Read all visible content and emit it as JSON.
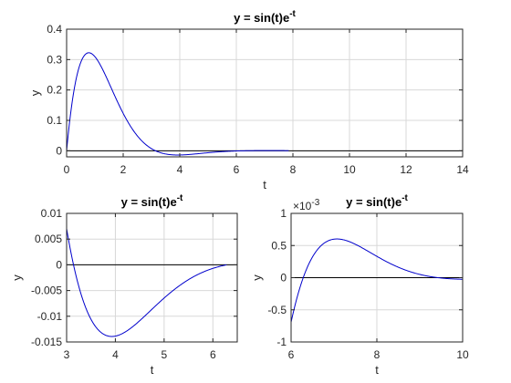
{
  "chart_data": [
    {
      "type": "line",
      "title_base": "y = sin(t)e",
      "title_exp": "-t",
      "xlabel": "t",
      "ylabel": "y",
      "xlim": [
        0,
        14
      ],
      "ylim": [
        -0.02,
        0.4
      ],
      "xticks": [
        0,
        2,
        4,
        6,
        8,
        10,
        12,
        14
      ],
      "yticks": [
        0,
        0.1,
        0.2,
        0.3,
        0.4
      ],
      "xticklabels": [
        "0",
        "2",
        "4",
        "6",
        "8",
        "10",
        "12",
        "14"
      ],
      "yticklabels": [
        "0",
        "0.1",
        "0.2",
        "0.3",
        "0.4"
      ],
      "grid": true,
      "zero_line": [
        0,
        14
      ],
      "curve_domain": [
        0,
        7.85
      ],
      "series": [
        {
          "function": "sin(t)*exp(-t)",
          "x": [
            0,
            0.4,
            0.785,
            1.2,
            1.6,
            2.0,
            2.5,
            3.0,
            3.5,
            3.93,
            4.5,
            5.0,
            6.0,
            6.28,
            7.07,
            7.85
          ],
          "y": [
            0,
            0.261,
            0.322,
            0.281,
            0.202,
            0.123,
            0.049,
            0.007,
            -0.011,
            -0.014,
            -0.011,
            -0.006,
            -0.0007,
            0,
            0.0006,
            0.0004
          ]
        }
      ]
    },
    {
      "type": "line",
      "title_base": "y = sin(t)e",
      "title_exp": "-t",
      "xlabel": "t",
      "ylabel": "y",
      "xlim": [
        3,
        6.5
      ],
      "ylim": [
        -0.015,
        0.01
      ],
      "xticks": [
        3,
        4,
        5,
        6
      ],
      "yticks": [
        -0.015,
        -0.01,
        -0.005,
        0,
        0.005,
        0.01
      ],
      "xticklabels": [
        "3",
        "4",
        "5",
        "6"
      ],
      "yticklabels": [
        "-0.015",
        "-0.01",
        "-0.005",
        "0",
        "0.005",
        "0.01"
      ],
      "grid": true,
      "zero_line": [
        3,
        6.5
      ],
      "curve_domain": [
        3,
        6.28
      ],
      "series": [
        {
          "function": "sin(t)*exp(-t)",
          "x": [
            3.0,
            3.5,
            3.93,
            4.5,
            5.0,
            5.5,
            6.0,
            6.28
          ],
          "y": [
            0.007,
            -0.011,
            -0.014,
            -0.011,
            -0.0065,
            -0.0029,
            -0.0007,
            0
          ]
        }
      ]
    },
    {
      "type": "line",
      "title_base": "y = sin(t)e",
      "title_exp": "-t",
      "xlabel": "t",
      "ylabel": "y",
      "xlim": [
        6,
        10
      ],
      "ylim": [
        -0.001,
        0.001
      ],
      "xticks": [
        6,
        8,
        10
      ],
      "yticks": [
        -0.001,
        -0.0005,
        0,
        0.0005,
        0.001
      ],
      "xticklabels": [
        "6",
        "8",
        "10"
      ],
      "yticklabels": [
        "-1",
        "-0.5",
        "0",
        "0.5",
        "1"
      ],
      "exponent_base": "×10",
      "exponent_power": "-3",
      "scale": 0.001,
      "grid": true,
      "zero_line": [
        6,
        10
      ],
      "curve_domain": [
        6,
        10
      ],
      "series": [
        {
          "function": "sin(t)*exp(-t)",
          "x": [
            6.0,
            6.28,
            6.5,
            7.0,
            7.07,
            7.5,
            8.0,
            8.5,
            9.0,
            9.42,
            10.0
          ],
          "y": [
            -0.00069,
            0,
            0.00032,
            0.0006,
            0.00061,
            0.00052,
            0.00033,
            0.00016,
            5e-05,
            0,
            -2e-05
          ]
        }
      ]
    }
  ]
}
